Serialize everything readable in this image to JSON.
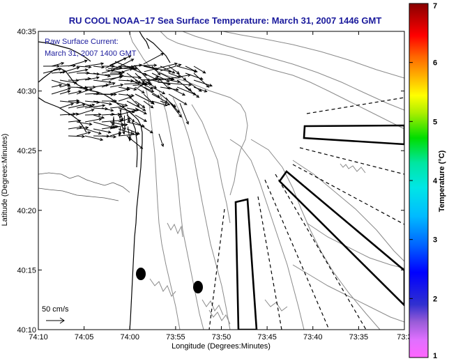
{
  "title": "RU COOL  NOAA−17  Sea Surface Temperature:  March 31, 2007 1446 GMT",
  "note_line1": "Raw Surface Current:",
  "note_line2": "March 31, 2007 1400 GMT",
  "scale_label": "50 cm/s",
  "xlabel": "Longitude (Degrees:Minutes)",
  "ylabel": "Latitude (Degrees:Minutes)",
  "x_ticks": [
    "74:10",
    "74:05",
    "74:00",
    "73:55",
    "73:50",
    "73:45",
    "73:40",
    "73:35",
    "73:3"
  ],
  "y_ticks": [
    "40:35",
    "40:30",
    "40:25",
    "40:20",
    "40:15",
    "40:10"
  ],
  "colorbar": {
    "label": "Temperature (°C)",
    "ticks": [
      "7",
      "6",
      "5",
      "4",
      "3",
      "2",
      "1"
    ],
    "range": [
      1,
      7
    ]
  },
  "colors": {
    "title": "#1a1a9c",
    "contour": "#8a8a8a",
    "coast": "#000000",
    "vector": "#000000"
  }
}
